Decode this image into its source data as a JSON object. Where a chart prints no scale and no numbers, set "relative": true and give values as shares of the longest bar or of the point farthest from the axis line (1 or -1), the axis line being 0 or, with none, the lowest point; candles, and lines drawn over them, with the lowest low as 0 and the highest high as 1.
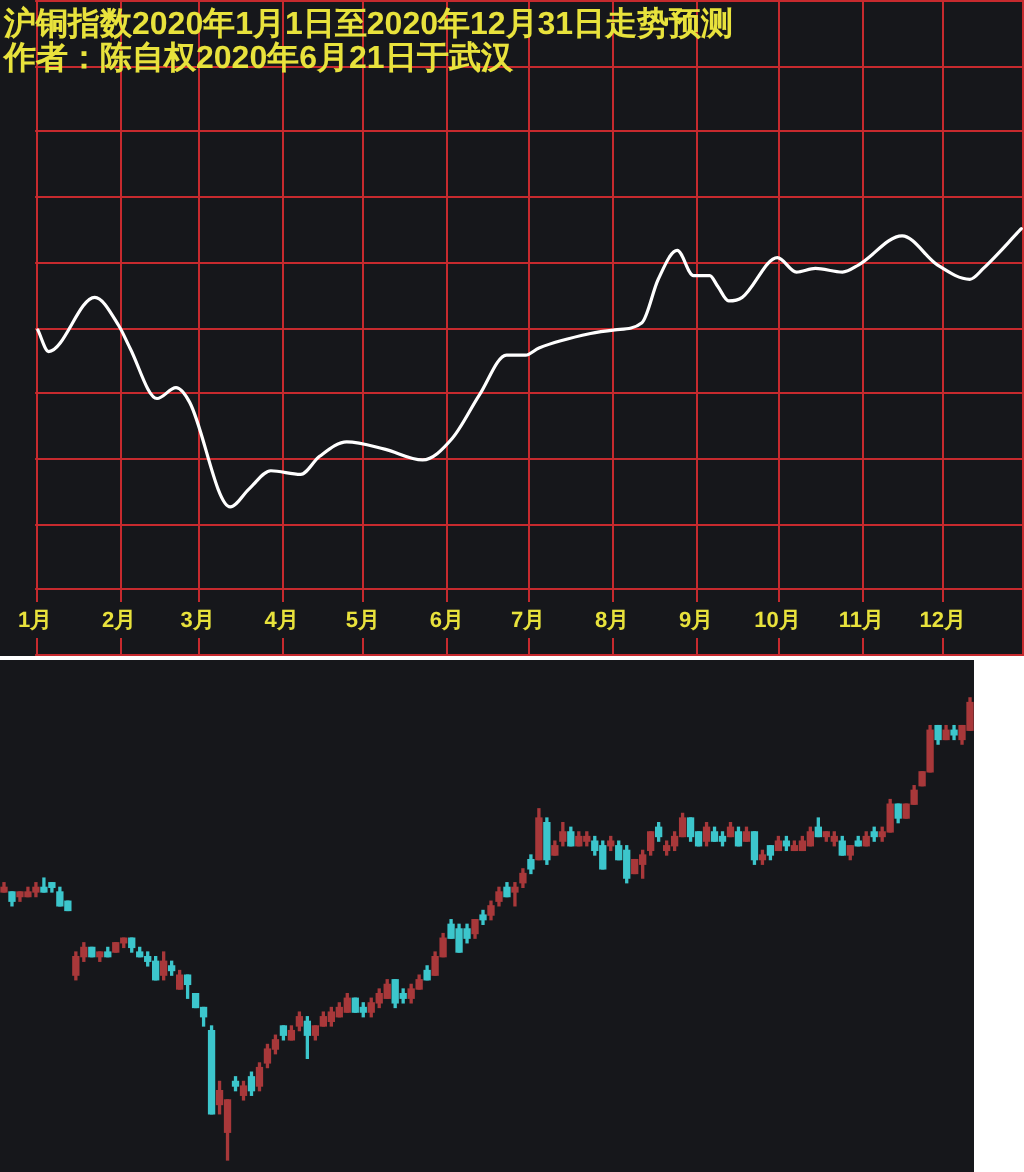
{
  "chart_data": [
    {
      "type": "line",
      "title": "沪铜指数2020年1月1日至2020年12月31日走势预测",
      "subtitle": "作者：陈自权2020年6月21日于武汉",
      "relative": true,
      "x": [
        "2020-01-02",
        "2020-01-06",
        "2020-01-23",
        "2020-02-01",
        "2020-02-05",
        "2020-02-15",
        "2020-02-22",
        "2020-02-27",
        "2020-03-13",
        "2020-03-20",
        "2020-03-28",
        "2020-04-08",
        "2020-04-15",
        "2020-04-25",
        "2020-05-09",
        "2020-05-23",
        "2020-06-03",
        "2020-06-13",
        "2020-06-23",
        "2020-06-30",
        "2020-07-05",
        "2020-07-24",
        "2020-08-02",
        "2020-08-12",
        "2020-08-18",
        "2020-08-25",
        "2020-08-31",
        "2020-09-06",
        "2020-09-09",
        "2020-09-13",
        "2020-09-18",
        "2020-10-01",
        "2020-10-08",
        "2020-10-15",
        "2020-10-25",
        "2020-10-31",
        "2020-11-16",
        "2020-11-29",
        "2020-12-11",
        "2020-12-16",
        "2020-12-30"
      ],
      "series": [
        {
          "color": "#ffffff",
          "values": [
            0.72,
            0.66,
            0.81,
            0.73,
            0.67,
            0.53,
            0.56,
            0.52,
            0.23,
            0.28,
            0.33,
            0.32,
            0.37,
            0.41,
            0.39,
            0.36,
            0.42,
            0.54,
            0.65,
            0.65,
            0.67,
            0.71,
            0.72,
            0.74,
            0.86,
            0.94,
            0.87,
            0.87,
            0.84,
            0.8,
            0.81,
            0.92,
            0.88,
            0.89,
            0.88,
            0.9,
            0.98,
            0.9,
            0.86,
            0.89,
            1
          ]
        }
      ],
      "xlim": [
        "2020-01-01",
        "2020-12-31"
      ],
      "xticks": [
        {
          "value": "2020-01-01",
          "label": "1月"
        },
        {
          "value": "2020-02-01",
          "label": "2月"
        },
        {
          "value": "2020-03-01",
          "label": "3月"
        },
        {
          "value": "2020-04-01",
          "label": "4月"
        },
        {
          "value": "2020-05-01",
          "label": "5月"
        },
        {
          "value": "2020-06-01",
          "label": "6月"
        },
        {
          "value": "2020-07-01",
          "label": "7月"
        },
        {
          "value": "2020-08-01",
          "label": "8月"
        },
        {
          "value": "2020-09-01",
          "label": "9月"
        },
        {
          "value": "2020-10-01",
          "label": "10月"
        },
        {
          "value": "2020-11-01",
          "label": "11月"
        },
        {
          "value": "2020-12-01",
          "label": "12月"
        }
      ],
      "tick_labels": "x",
      "grid": true
    },
    {
      "type": "candlestick",
      "relative": true,
      "categories": [
        null,
        null,
        null,
        null,
        null,
        null,
        null,
        null,
        null,
        null,
        null,
        null,
        null,
        null,
        null,
        null,
        null,
        null,
        null,
        null,
        null,
        null,
        null,
        null,
        null,
        null,
        null,
        null,
        null,
        null,
        null,
        null,
        null,
        null,
        null,
        null,
        null,
        null,
        null,
        null,
        null,
        null,
        null,
        null,
        null,
        null,
        null,
        null,
        null,
        null,
        null,
        null,
        null,
        null,
        null,
        null,
        null,
        null,
        null,
        null,
        null,
        null,
        null,
        null,
        null,
        null,
        null,
        null,
        null,
        null,
        null,
        null,
        null,
        null,
        null,
        null,
        null,
        null,
        null,
        null,
        null,
        null,
        null,
        null,
        null,
        null,
        null,
        null,
        null,
        null,
        null,
        null,
        null,
        null,
        null,
        null,
        null,
        null,
        null,
        null,
        null,
        null,
        null,
        null,
        null,
        null,
        null,
        null,
        null,
        null,
        null,
        null,
        null,
        null,
        null,
        null,
        null,
        null,
        null,
        null,
        null,
        null
      ],
      "ohlc": [
        [
          0.58,
          0.6,
          0.58,
          0.59
        ],
        [
          0.58,
          0.58,
          0.55,
          0.56
        ],
        [
          0.57,
          0.58,
          0.56,
          0.58
        ],
        [
          0.57,
          0.59,
          0.57,
          0.58
        ],
        [
          0.58,
          0.6,
          0.57,
          0.59
        ],
        [
          0.59,
          0.61,
          0.58,
          0.58
        ],
        [
          0.6,
          0.6,
          0.58,
          0.59
        ],
        [
          0.58,
          0.59,
          0.55,
          0.55
        ],
        [
          0.56,
          0.56,
          0.54,
          0.54
        ],
        [
          0.4,
          0.45,
          0.39,
          0.44
        ],
        [
          0.44,
          0.47,
          0.43,
          0.46
        ],
        [
          0.46,
          0.46,
          0.44,
          0.44
        ],
        [
          0.44,
          0.45,
          0.43,
          0.45
        ],
        [
          0.45,
          0.46,
          0.44,
          0.44
        ],
        [
          0.45,
          0.47,
          0.45,
          0.47
        ],
        [
          0.47,
          0.48,
          0.46,
          0.48
        ],
        [
          0.48,
          0.48,
          0.45,
          0.46
        ],
        [
          0.45,
          0.46,
          0.44,
          0.44
        ],
        [
          0.44,
          0.45,
          0.42,
          0.43
        ],
        [
          0.43,
          0.44,
          0.39,
          0.39
        ],
        [
          0.4,
          0.45,
          0.39,
          0.43
        ],
        [
          0.42,
          0.43,
          0.4,
          0.41
        ],
        [
          0.37,
          0.41,
          0.37,
          0.4
        ],
        [
          0.4,
          0.4,
          0.35,
          0.38
        ],
        [
          0.36,
          0.36,
          0.33,
          0.33
        ],
        [
          0.33,
          0.33,
          0.29,
          0.31
        ],
        [
          0.28,
          0.29,
          0.1,
          0.1
        ],
        [
          0.12,
          0.17,
          0.1,
          0.15
        ],
        [
          0.06,
          0.13,
          0,
          0.13
        ],
        [
          0.17,
          0.18,
          0.15,
          0.16
        ],
        [
          0.14,
          0.17,
          0.13,
          0.16
        ],
        [
          0.18,
          0.19,
          0.14,
          0.15
        ],
        [
          0.16,
          0.21,
          0.15,
          0.2
        ],
        [
          0.21,
          0.25,
          0.2,
          0.24
        ],
        [
          0.24,
          0.27,
          0.23,
          0.26
        ],
        [
          0.29,
          0.29,
          0.26,
          0.27
        ],
        [
          0.26,
          0.29,
          0.26,
          0.28
        ],
        [
          0.29,
          0.32,
          0.28,
          0.31
        ],
        [
          0.3,
          0.31,
          0.22,
          0.27
        ],
        [
          0.27,
          0.29,
          0.26,
          0.29
        ],
        [
          0.29,
          0.32,
          0.29,
          0.31
        ],
        [
          0.3,
          0.33,
          0.29,
          0.32
        ],
        [
          0.31,
          0.34,
          0.31,
          0.33
        ],
        [
          0.32,
          0.36,
          0.32,
          0.35
        ],
        [
          0.35,
          0.35,
          0.32,
          0.32
        ],
        [
          0.33,
          0.34,
          0.31,
          0.32
        ],
        [
          0.32,
          0.35,
          0.31,
          0.34
        ],
        [
          0.34,
          0.37,
          0.33,
          0.36
        ],
        [
          0.35,
          0.39,
          0.35,
          0.38
        ],
        [
          0.39,
          0.39,
          0.33,
          0.34
        ],
        [
          0.36,
          0.37,
          0.34,
          0.35
        ],
        [
          0.35,
          0.38,
          0.34,
          0.37
        ],
        [
          0.37,
          0.4,
          0.37,
          0.39
        ],
        [
          0.41,
          0.42,
          0.39,
          0.39
        ],
        [
          0.4,
          0.45,
          0.4,
          0.44
        ],
        [
          0.44,
          0.49,
          0.44,
          0.48
        ],
        [
          0.51,
          0.52,
          0.48,
          0.48
        ],
        [
          0.5,
          0.51,
          0.45,
          0.45
        ],
        [
          0.5,
          0.51,
          0.47,
          0.48
        ],
        [
          0.49,
          0.52,
          0.48,
          0.52
        ],
        [
          0.53,
          0.54,
          0.51,
          0.52
        ],
        [
          0.53,
          0.56,
          0.52,
          0.55
        ],
        [
          0.56,
          0.59,
          0.55,
          0.58
        ],
        [
          0.59,
          0.6,
          0.57,
          0.57
        ],
        [
          0.58,
          0.6,
          0.55,
          0.59
        ],
        [
          0.6,
          0.63,
          0.59,
          0.62
        ],
        [
          0.65,
          0.66,
          0.62,
          0.63
        ],
        [
          0.65,
          0.76,
          0.65,
          0.74
        ],
        [
          0.73,
          0.74,
          0.64,
          0.65
        ],
        [
          0.66,
          0.69,
          0.66,
          0.68
        ],
        [
          0.69,
          0.73,
          0.68,
          0.71
        ],
        [
          0.71,
          0.72,
          0.68,
          0.68
        ],
        [
          0.68,
          0.71,
          0.68,
          0.7
        ],
        [
          0.69,
          0.71,
          0.68,
          0.7
        ],
        [
          0.69,
          0.7,
          0.66,
          0.67
        ],
        [
          0.68,
          0.69,
          0.63,
          0.63
        ],
        [
          0.68,
          0.7,
          0.67,
          0.69
        ],
        [
          0.68,
          0.69,
          0.65,
          0.65
        ],
        [
          0.67,
          0.68,
          0.6,
          0.61
        ],
        [
          0.62,
          0.65,
          0.62,
          0.65
        ],
        [
          0.64,
          0.67,
          0.61,
          0.66
        ],
        [
          0.67,
          0.71,
          0.66,
          0.71
        ],
        [
          0.72,
          0.73,
          0.69,
          0.7
        ],
        [
          0.67,
          0.69,
          0.66,
          0.68
        ],
        [
          0.68,
          0.71,
          0.67,
          0.7
        ],
        [
          0.7,
          0.75,
          0.7,
          0.74
        ],
        [
          0.74,
          0.74,
          0.69,
          0.7
        ],
        [
          0.71,
          0.71,
          0.68,
          0.68
        ],
        [
          0.69,
          0.73,
          0.68,
          0.72
        ],
        [
          0.71,
          0.72,
          0.69,
          0.69
        ],
        [
          0.7,
          0.71,
          0.68,
          0.69
        ],
        [
          0.7,
          0.73,
          0.7,
          0.72
        ],
        [
          0.71,
          0.72,
          0.68,
          0.68
        ],
        [
          0.69,
          0.72,
          0.69,
          0.71
        ],
        [
          0.71,
          0.71,
          0.64,
          0.65
        ],
        [
          0.65,
          0.67,
          0.64,
          0.66
        ],
        [
          0.68,
          0.68,
          0.65,
          0.66
        ],
        [
          0.67,
          0.7,
          0.67,
          0.69
        ],
        [
          0.69,
          0.7,
          0.67,
          0.68
        ],
        [
          0.67,
          0.69,
          0.67,
          0.68
        ],
        [
          0.67,
          0.7,
          0.67,
          0.69
        ],
        [
          0.68,
          0.72,
          0.68,
          0.71
        ],
        [
          0.72,
          0.74,
          0.7,
          0.7
        ],
        [
          0.7,
          0.71,
          0.69,
          0.71
        ],
        [
          0.69,
          0.71,
          0.68,
          0.7
        ],
        [
          0.69,
          0.7,
          0.66,
          0.66
        ],
        [
          0.66,
          0.68,
          0.65,
          0.68
        ],
        [
          0.69,
          0.7,
          0.68,
          0.68
        ],
        [
          0.68,
          0.71,
          0.68,
          0.7
        ],
        [
          0.71,
          0.72,
          0.69,
          0.7
        ],
        [
          0.7,
          0.72,
          0.69,
          0.71
        ],
        [
          0.71,
          0.78,
          0.71,
          0.77
        ],
        [
          0.77,
          0.77,
          0.73,
          0.74
        ],
        [
          0.74,
          0.77,
          0.74,
          0.77
        ],
        [
          0.77,
          0.81,
          0.77,
          0.8
        ],
        [
          0.81,
          0.84,
          0.81,
          0.84
        ],
        [
          0.84,
          0.94,
          0.84,
          0.93
        ],
        [
          0.94,
          0.94,
          0.9,
          0.91
        ],
        [
          0.91,
          0.94,
          0.91,
          0.93
        ],
        [
          0.93,
          0.94,
          0.91,
          0.92
        ],
        [
          0.91,
          0.94,
          0.9,
          0.94
        ],
        [
          0.93,
          1,
          0.93,
          0.99
        ]
      ],
      "colors": [
        "#a8383a",
        "#3cc6cc",
        "#a8383a",
        "#a8383a",
        "#a8383a",
        "#3cc6cc",
        "#3cc6cc",
        "#3cc6cc",
        "#3cc6cc",
        "#a8383a",
        "#a8383a",
        "#3cc6cc",
        "#a8383a",
        "#3cc6cc",
        "#a8383a",
        "#a8383a",
        "#3cc6cc",
        "#3cc6cc",
        "#3cc6cc",
        "#3cc6cc",
        "#a8383a",
        "#3cc6cc",
        "#a8383a",
        "#3cc6cc",
        "#3cc6cc",
        "#3cc6cc",
        "#3cc6cc",
        "#a8383a",
        "#a8383a",
        "#3cc6cc",
        "#a8383a",
        "#3cc6cc",
        "#a8383a",
        "#a8383a",
        "#a8383a",
        "#3cc6cc",
        "#a8383a",
        "#a8383a",
        "#3cc6cc",
        "#a8383a",
        "#a8383a",
        "#a8383a",
        "#a8383a",
        "#a8383a",
        "#3cc6cc",
        "#3cc6cc",
        "#a8383a",
        "#a8383a",
        "#a8383a",
        "#3cc6cc",
        "#3cc6cc",
        "#a8383a",
        "#a8383a",
        "#3cc6cc",
        "#a8383a",
        "#a8383a",
        "#3cc6cc",
        "#3cc6cc",
        "#3cc6cc",
        "#a8383a",
        "#3cc6cc",
        "#a8383a",
        "#a8383a",
        "#3cc6cc",
        "#a8383a",
        "#a8383a",
        "#3cc6cc",
        "#a8383a",
        "#3cc6cc",
        "#a8383a",
        "#a8383a",
        "#3cc6cc",
        "#a8383a",
        "#a8383a",
        "#3cc6cc",
        "#3cc6cc",
        "#a8383a",
        "#3cc6cc",
        "#3cc6cc",
        "#a8383a",
        "#a8383a",
        "#a8383a",
        "#3cc6cc",
        "#a8383a",
        "#a8383a",
        "#a8383a",
        "#3cc6cc",
        "#3cc6cc",
        "#a8383a",
        "#3cc6cc",
        "#3cc6cc",
        "#a8383a",
        "#3cc6cc",
        "#a8383a",
        "#3cc6cc",
        "#a8383a",
        "#3cc6cc",
        "#a8383a",
        "#3cc6cc",
        "#a8383a",
        "#a8383a",
        "#a8383a",
        "#3cc6cc",
        "#a8383a",
        "#a8383a",
        "#3cc6cc",
        "#a8383a",
        "#3cc6cc",
        "#a8383a",
        "#3cc6cc",
        "#a8383a",
        "#a8383a",
        "#3cc6cc",
        "#a8383a",
        "#a8383a",
        "#a8383a",
        "#a8383a",
        "#3cc6cc",
        "#a8383a",
        "#3cc6cc",
        "#a8383a",
        "#a8383a"
      ]
    }
  ]
}
